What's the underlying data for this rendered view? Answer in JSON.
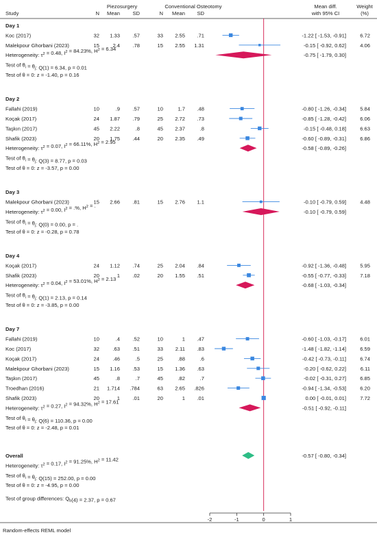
{
  "chart_data": {
    "type": "forest",
    "header": {
      "group1": "Piezosurgery",
      "group2": "Conventional Osteotomy",
      "study": "Study",
      "n": "N",
      "mean": "Mean",
      "sd": "SD",
      "effect_line1": "Mean diff.",
      "effect_line2": "with 95% CI",
      "weight_line1": "Weight",
      "weight_line2": "(%)"
    },
    "x_axis": {
      "range": [
        -2,
        1
      ],
      "ticks": [
        "-2",
        "-1",
        "0",
        "1"
      ],
      "null_line": 0
    },
    "colors": {
      "study_marker": "#3a87e0",
      "subgroup_diamond": "#d6185a",
      "overall_diamond": "#2ebd86",
      "null_line": "#d41a4c"
    },
    "groups": [
      {
        "name": "Day 1",
        "studies": [
          {
            "study": "Koc (2017)",
            "n1": "32",
            "mean1": "1.33",
            "sd1": ".57",
            "n2": "33",
            "mean2": "2.55",
            "sd2": ".71",
            "est": -1.22,
            "lo": -1.53,
            "hi": -0.91,
            "ci_text": "-1.22 [ -1.53, -0.91]",
            "weight": "6.72"
          },
          {
            "study": "Malekpour Ghorbani (2023)",
            "n1": "15",
            "mean1": "2.4",
            "sd1": ".78",
            "n2": "15",
            "mean2": "2.55",
            "sd2": "1.31",
            "est": -0.15,
            "lo": -0.92,
            "hi": 0.62,
            "ci_text": "-0.15 [ -0.92, 0.62]",
            "weight": "4.06"
          }
        ],
        "heterogeneity": "Heterogeneity: τ² = 0.48, I² = 84.23%, H² = 6.34",
        "homogeneity_test": "Test of θi = θj: Q(1) = 6.34, p = 0.01",
        "effect_test": "Test of θ = 0: z = -1.40, p = 0.16",
        "summary": {
          "est": -0.75,
          "lo": -1.79,
          "hi": 0.3,
          "ci_text": "-0.75 [ -1.79, 0.30]"
        }
      },
      {
        "name": "Day 2",
        "studies": [
          {
            "study": "Fallahi (2019)",
            "n1": "10",
            "mean1": ".9",
            "sd1": ".57",
            "n2": "10",
            "mean2": "1.7",
            "sd2": ".48",
            "est": -0.8,
            "lo": -1.26,
            "hi": -0.34,
            "ci_text": "-0.80 [ -1.26, -0.34]",
            "weight": "5.84"
          },
          {
            "study": "Koçak (2017)",
            "n1": "24",
            "mean1": "1.87",
            "sd1": ".79",
            "n2": "25",
            "mean2": "2.72",
            "sd2": ".73",
            "est": -0.85,
            "lo": -1.28,
            "hi": -0.42,
            "ci_text": "-0.85 [ -1.28, -0.42]",
            "weight": "6.06"
          },
          {
            "study": "Taşkın (2017)",
            "n1": "45",
            "mean1": "2.22",
            "sd1": ".8",
            "n2": "45",
            "mean2": "2.37",
            "sd2": ".8",
            "est": -0.15,
            "lo": -0.48,
            "hi": 0.18,
            "ci_text": "-0.15 [ -0.48, 0.18]",
            "weight": "6.63"
          },
          {
            "study": "Shafik (2023)",
            "n1": "20",
            "mean1": "1.75",
            "sd1": ".44",
            "n2": "20",
            "mean2": "2.35",
            "sd2": ".49",
            "est": -0.6,
            "lo": -0.89,
            "hi": -0.31,
            "ci_text": "-0.60 [ -0.89, -0.31]",
            "weight": "6.86"
          }
        ],
        "heterogeneity": "Heterogeneity: τ² = 0.07, I² = 66.11%, H² = 2.95",
        "homogeneity_test": "Test of θi = θj: Q(3) = 8.77, p = 0.03",
        "effect_test": "Test of θ = 0: z = -3.57, p = 0.00",
        "summary": {
          "est": -0.58,
          "lo": -0.89,
          "hi": -0.26,
          "ci_text": "-0.58 [ -0.89, -0.26]"
        }
      },
      {
        "name": "Day 3",
        "studies": [
          {
            "study": "Malekpour Ghorbani (2023)",
            "n1": "15",
            "mean1": "2.66",
            "sd1": ".81",
            "n2": "15",
            "mean2": "2.76",
            "sd2": "1.1",
            "est": -0.1,
            "lo": -0.79,
            "hi": 0.59,
            "ci_text": "-0.10 [ -0.79, 0.59]",
            "weight": "4.48"
          }
        ],
        "heterogeneity": "Heterogeneity: τ² = 0.00, I² = .%, H² = .",
        "homogeneity_test": "Test of θi = θj: Q(0) = 0.00, p = .",
        "effect_test": "Test of θ = 0: z = -0.28, p = 0.78",
        "summary": {
          "est": -0.1,
          "lo": -0.79,
          "hi": 0.59,
          "ci_text": "-0.10 [ -0.79, 0.59]"
        }
      },
      {
        "name": "Day 4",
        "studies": [
          {
            "study": "Koçak (2017)",
            "n1": "24",
            "mean1": "1.12",
            "sd1": ".74",
            "n2": "25",
            "mean2": "2.04",
            "sd2": ".84",
            "est": -0.92,
            "lo": -1.36,
            "hi": -0.48,
            "ci_text": "-0.92 [ -1.36, -0.48]",
            "weight": "5.95"
          },
          {
            "study": "Shafik (2023)",
            "n1": "20",
            "mean1": "1",
            "sd1": ".02",
            "n2": "20",
            "mean2": "1.55",
            "sd2": ".51",
            "est": -0.55,
            "lo": -0.77,
            "hi": -0.33,
            "ci_text": "-0.55 [ -0.77, -0.33]",
            "weight": "7.18"
          }
        ],
        "heterogeneity": "Heterogeneity: τ² = 0.04, I² = 53.01%, H² = 2.13",
        "homogeneity_test": "Test of θi = θj: Q(1) = 2.13, p = 0.14",
        "effect_test": "Test of θ = 0: z = -3.85, p = 0.00",
        "summary": {
          "est": -0.68,
          "lo": -1.03,
          "hi": -0.34,
          "ci_text": "-0.68 [ -1.03, -0.34]"
        }
      },
      {
        "name": "Day 7",
        "studies": [
          {
            "study": "Fallahi (2019)",
            "n1": "10",
            "mean1": ".4",
            "sd1": ".52",
            "n2": "10",
            "mean2": "1",
            "sd2": ".47",
            "est": -0.6,
            "lo": -1.03,
            "hi": -0.17,
            "ci_text": "-0.60 [ -1.03, -0.17]",
            "weight": "6.01"
          },
          {
            "study": "Koc (2017)",
            "n1": "32",
            "mean1": ".63",
            "sd1": ".51",
            "n2": "33",
            "mean2": "2.11",
            "sd2": ".83",
            "est": -1.48,
            "lo": -1.82,
            "hi": -1.14,
            "ci_text": "-1.48 [ -1.82, -1.14]",
            "weight": "6.59"
          },
          {
            "study": "Koçak (2017)",
            "n1": "24",
            "mean1": ".46",
            "sd1": ".5",
            "n2": "25",
            "mean2": ".88",
            "sd2": ".6",
            "est": -0.42,
            "lo": -0.73,
            "hi": -0.11,
            "ci_text": "-0.42 [ -0.73, -0.11]",
            "weight": "6.74"
          },
          {
            "study": "Malekpour Ghorbani (2023)",
            "n1": "15",
            "mean1": "1.16",
            "sd1": ".53",
            "n2": "15",
            "mean2": "1.36",
            "sd2": ".63",
            "est": -0.2,
            "lo": -0.62,
            "hi": 0.22,
            "ci_text": "-0.20 [ -0.62, 0.22]",
            "weight": "6.11"
          },
          {
            "study": "Taşkın (2017)",
            "n1": "45",
            "mean1": ".8",
            "sd1": ".7",
            "n2": "45",
            "mean2": ".82",
            "sd2": ".7",
            "est": -0.02,
            "lo": -0.31,
            "hi": 0.27,
            "ci_text": "-0.02 [ -0.31, 0.27]",
            "weight": "6.85"
          },
          {
            "study": "Troedhan (2016)",
            "n1": "21",
            "mean1": "1.714",
            "sd1": ".784",
            "n2": "63",
            "mean2": "2.65",
            "sd2": ".826",
            "est": -0.94,
            "lo": -1.34,
            "hi": -0.53,
            "ci_text": "-0.94 [ -1.34, -0.53]",
            "weight": "6.20"
          },
          {
            "study": "Shafik (2023)",
            "n1": "20",
            "mean1": "1",
            "sd1": ".01",
            "n2": "20",
            "mean2": "1",
            "sd2": ".01",
            "est": 0.0,
            "lo": -0.01,
            "hi": 0.01,
            "ci_text": "0.00 [ -0.01, 0.01]",
            "weight": "7.72"
          }
        ],
        "heterogeneity": "Heterogeneity: τ² = 0.27, I² = 94.32%, H² = 17.61",
        "homogeneity_test": "Test of θi = θj: Q(6) = 110.36, p = 0.00",
        "effect_test": "Test of θ = 0: z = -2.48, p = 0.01",
        "summary": {
          "est": -0.51,
          "lo": -0.92,
          "hi": -0.11,
          "ci_text": "-0.51 [ -0.92, -0.11]"
        }
      }
    ],
    "overall": {
      "label": "Overall",
      "heterogeneity": "Heterogeneity: τ² = 0.17, I² = 91.25%, H² = 11.42",
      "homogeneity_test": "Test of θi = θj: Q(15) = 252.00, p = 0.00",
      "effect_test": "Test of θ = 0: z = -4.95, p = 0.00",
      "group_difference_test": "Test of group differences: Qb(4) = 2.37, p = 0.67",
      "summary": {
        "est": -0.57,
        "lo": -0.8,
        "hi": -0.34,
        "ci_text": "-0.57 [ -0.80, -0.34]"
      }
    },
    "footnote": "Random-effects REML model"
  }
}
